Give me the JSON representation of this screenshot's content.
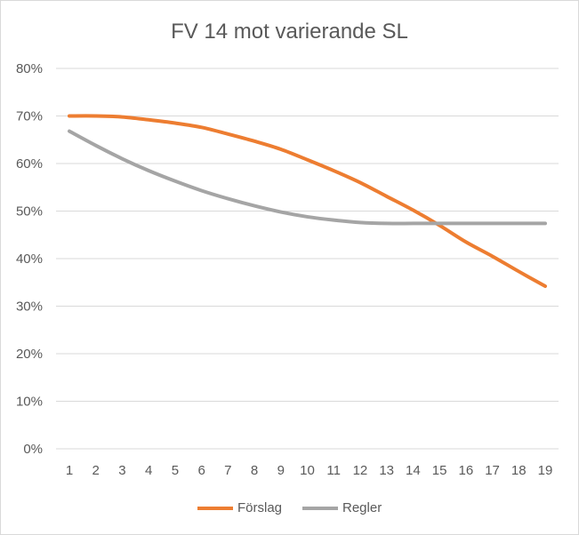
{
  "chart_data": {
    "type": "line",
    "title": "FV 14 mot varierande SL",
    "x": [
      1,
      2,
      3,
      4,
      5,
      6,
      7,
      8,
      9,
      10,
      11,
      12,
      13,
      14,
      15,
      16,
      17,
      18,
      19
    ],
    "x_tick_labels": [
      "1",
      "2",
      "3",
      "4",
      "5",
      "6",
      "7",
      "8",
      "9",
      "10",
      "11",
      "12",
      "13",
      "14",
      "15",
      "16",
      "17",
      "18",
      "19"
    ],
    "y_tick_labels": [
      "0%",
      "10%",
      "20%",
      "30%",
      "40%",
      "50%",
      "60%",
      "70%",
      "80%"
    ],
    "ylim": [
      0,
      0.8
    ],
    "y_format": "percent",
    "grid": true,
    "legend_position": "bottom",
    "series": [
      {
        "name": "Förslag",
        "color": "#ED7D31",
        "values": [
          0.7,
          0.7,
          0.698,
          0.692,
          0.685,
          0.676,
          0.662,
          0.647,
          0.63,
          0.608,
          0.585,
          0.56,
          0.531,
          0.502,
          0.47,
          0.435,
          0.405,
          0.373,
          0.342
        ]
      },
      {
        "name": "Regler",
        "color": "#A5A5A5",
        "values": [
          0.668,
          0.638,
          0.61,
          0.585,
          0.563,
          0.543,
          0.526,
          0.511,
          0.498,
          0.488,
          0.481,
          0.476,
          0.474,
          0.474,
          0.474,
          0.474,
          0.474,
          0.474,
          0.474
        ]
      }
    ]
  }
}
